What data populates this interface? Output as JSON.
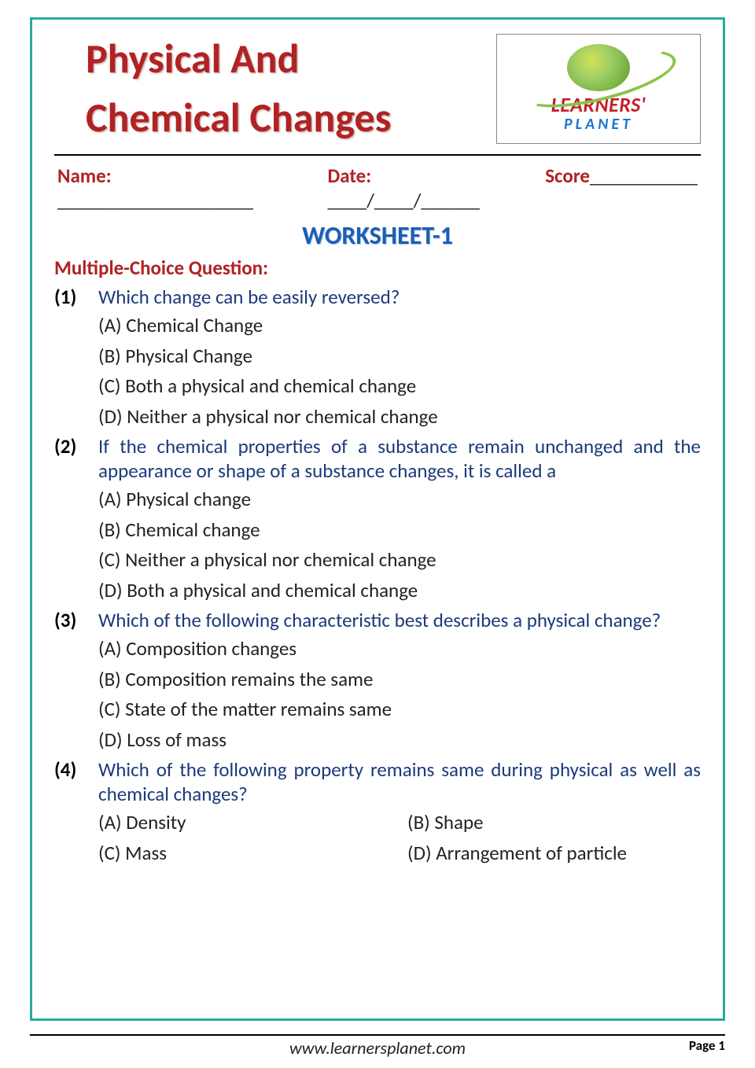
{
  "title_line1": "Physical And",
  "title_line2": "Chemical Changes",
  "logo": {
    "brand": "LEARNERS'",
    "sub": "PLANET"
  },
  "info": {
    "name_label": "Name:",
    "name_blank": " ____________________",
    "date_label": "Date:",
    "date_blank": " ____/____/______",
    "score_label": "Score",
    "score_blank": "___________"
  },
  "worksheet_title": "WORKSHEET-1",
  "section_label": "Multiple-Choice Question:",
  "questions": [
    {
      "num": "(1)",
      "text": "Which change can be easily reversed?",
      "justify": false,
      "grid": false,
      "opts": [
        "(A) Chemical Change",
        "(B) Physical Change",
        "(C) Both a physical and chemical change",
        "(D) Neither a physical nor chemical change"
      ]
    },
    {
      "num": "(2)",
      "text": "If the chemical properties of a substance remain unchanged and the appearance or shape of a substance changes, it is called a",
      "justify": true,
      "grid": false,
      "opts": [
        "(A) Physical change",
        "(B) Chemical change",
        "(C) Neither a physical nor chemical change",
        "(D) Both a physical and chemical change"
      ]
    },
    {
      "num": "(3)",
      "text": "Which of the following characteristic best describes a physical change?",
      "justify": false,
      "grid": false,
      "opts": [
        "(A) Composition changes",
        "(B) Composition remains the same",
        "(C) State of the matter remains same",
        "(D) Loss of mass"
      ]
    },
    {
      "num": "(4)",
      "text": "Which of the following property remains same during physical as well as chemical changes?",
      "justify": true,
      "grid": true,
      "opts": [
        "(A) Density",
        "(B) Shape",
        "(C) Mass",
        "(D) Arrangement of particle"
      ]
    }
  ],
  "footer": {
    "url": "www.learnersplanet.com",
    "page": "Page 1"
  },
  "colors": {
    "border": "#2aa9a0",
    "title": "#b02224",
    "heading_blue": "#1b5fb3",
    "question_blue": "#1a3a7a",
    "red_label": "#b02224"
  }
}
